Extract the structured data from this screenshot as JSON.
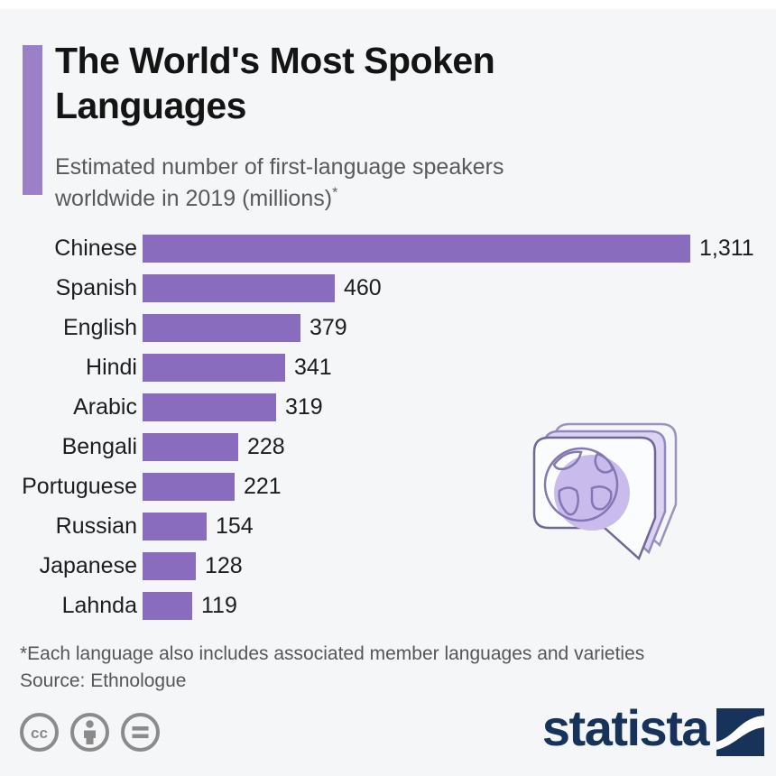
{
  "header": {
    "title": "The World's Most Spoken Languages",
    "subtitle": "Estimated number of first-language speakers worldwide in 2019 (millions)",
    "footnote_marker": "*"
  },
  "chart_data": {
    "type": "bar",
    "orientation": "horizontal",
    "title": "The World's Most Spoken Languages",
    "subtitle": "Estimated number of first-language speakers worldwide in 2019 (millions)",
    "categories": [
      "Chinese",
      "Spanish",
      "English",
      "Hindi",
      "Arabic",
      "Bengali",
      "Portuguese",
      "Russian",
      "Japanese",
      "Lahnda"
    ],
    "values": [
      1311,
      460,
      379,
      341,
      319,
      228,
      221,
      154,
      128,
      119
    ],
    "value_labels": [
      "1,311",
      "460",
      "379",
      "341",
      "319",
      "228",
      "221",
      "154",
      "128",
      "119"
    ],
    "unit": "millions of first-language speakers",
    "xlim": [
      0,
      1311
    ],
    "grid": false,
    "legend": false,
    "bar_color": "#8a6cbe"
  },
  "footnotes": {
    "note": "*Each language also includes associated member languages and varieties",
    "source": "Source: Ethnologue"
  },
  "footer": {
    "license_icons": [
      "cc-icon",
      "attribution-person-icon",
      "equals-icon"
    ],
    "brand_name": "statista"
  },
  "colors": {
    "background": "#f4f6f8",
    "accent_bar": "#9b7fc7",
    "bar": "#8a6cbe",
    "title_text": "#141414",
    "subtitle_text": "#58595b",
    "brand_navy": "#17335a",
    "license_gray": "#8b8b8b",
    "illustration_outline": "#8477b3",
    "illustration_fill_light": "#dcd3f2",
    "illustration_globe_fill": "#c9bcec"
  }
}
